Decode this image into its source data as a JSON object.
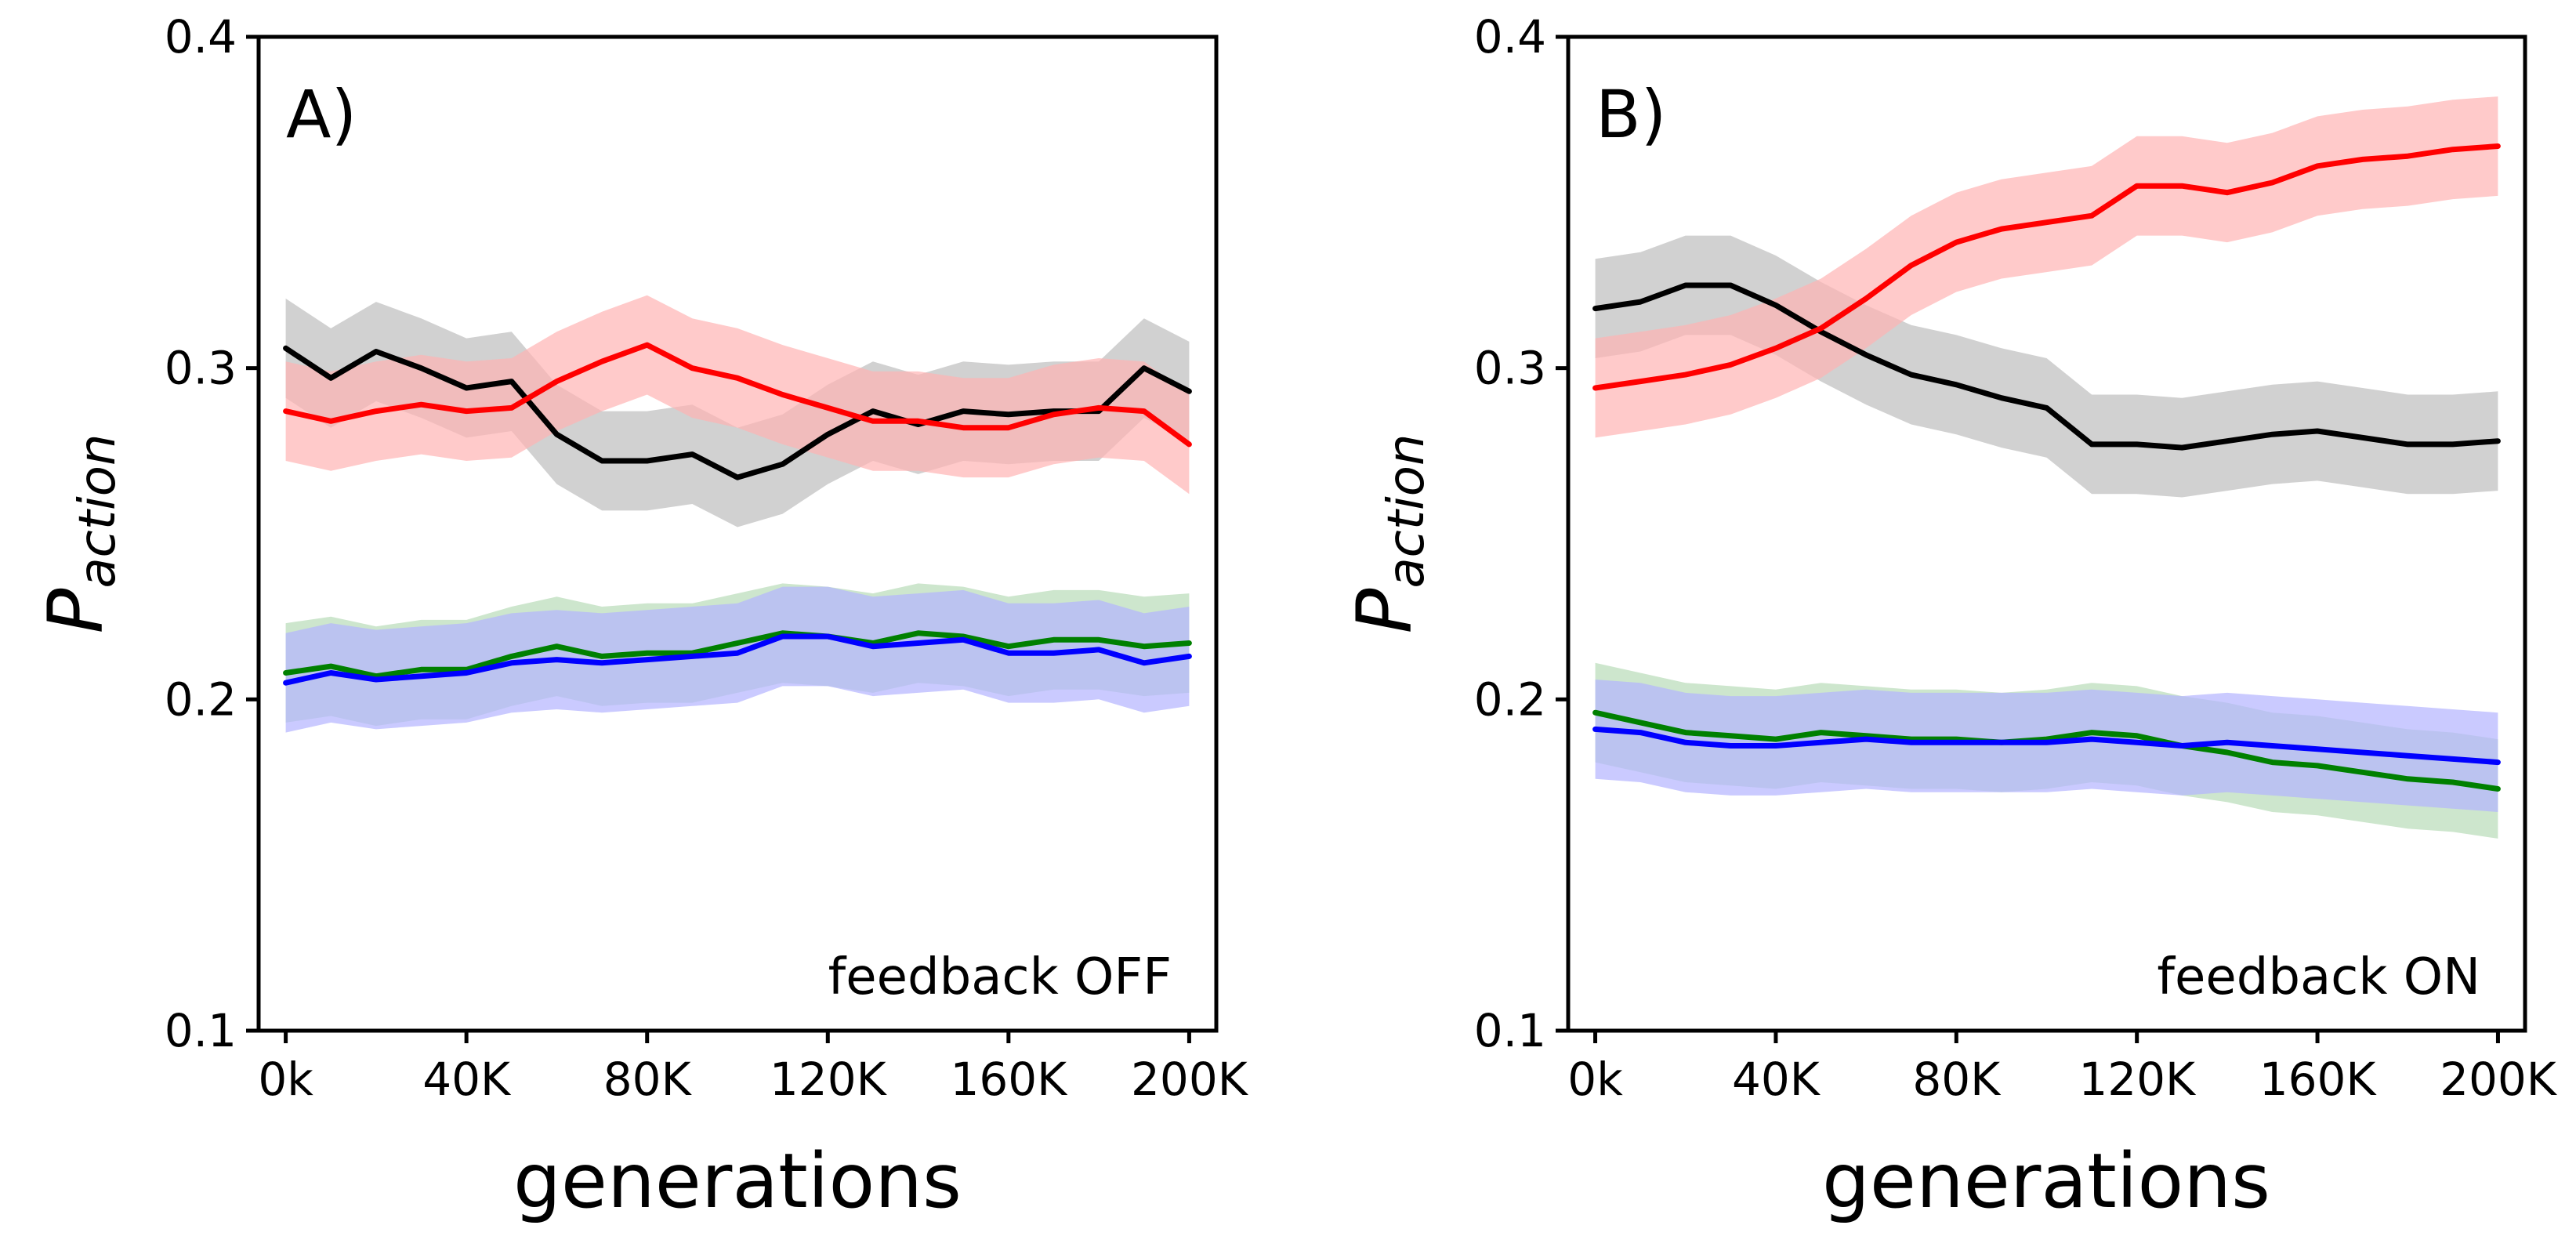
{
  "chart_data": [
    {
      "type": "line",
      "panel_label": "A)",
      "annotation": "feedback OFF",
      "xlabel": "generations",
      "ylabel_main": "P",
      "ylabel_sub": "action",
      "xlim": [
        -6000,
        206000
      ],
      "ylim": [
        0.1,
        0.4
      ],
      "xticks": [
        0,
        40000,
        80000,
        120000,
        160000,
        200000
      ],
      "xtick_labels": [
        "0k",
        "40K",
        "80K",
        "120K",
        "160K",
        "200K"
      ],
      "yticks": [
        0.1,
        0.2,
        0.3,
        0.4
      ],
      "ytick_labels": [
        "0.1",
        "0.2",
        "0.3",
        "0.4"
      ],
      "grid": false,
      "shaded_band": "approx. ±0.015 around each series",
      "x": [
        0,
        10000,
        20000,
        30000,
        40000,
        50000,
        60000,
        70000,
        80000,
        90000,
        100000,
        110000,
        120000,
        130000,
        140000,
        150000,
        160000,
        170000,
        180000,
        190000,
        200000
      ],
      "series": [
        {
          "color": "#000000",
          "band_color": "#bdbdbd",
          "values": [
            0.306,
            0.297,
            0.305,
            0.3,
            0.294,
            0.296,
            0.28,
            0.272,
            0.272,
            0.274,
            0.267,
            0.271,
            0.28,
            0.287,
            0.283,
            0.287,
            0.286,
            0.287,
            0.287,
            0.3,
            0.293
          ]
        },
        {
          "color": "#ff0000",
          "band_color": "#ffb3b3",
          "values": [
            0.287,
            0.284,
            0.287,
            0.289,
            0.287,
            0.288,
            0.296,
            0.302,
            0.307,
            0.3,
            0.297,
            0.292,
            0.288,
            0.284,
            0.284,
            0.282,
            0.282,
            0.286,
            0.288,
            0.287,
            0.277
          ]
        },
        {
          "color": "#008000",
          "band_color": "#b8dbb8",
          "values": [
            0.208,
            0.21,
            0.207,
            0.209,
            0.209,
            0.213,
            0.216,
            0.213,
            0.214,
            0.214,
            0.217,
            0.22,
            0.219,
            0.217,
            0.22,
            0.219,
            0.216,
            0.218,
            0.218,
            0.216,
            0.217
          ]
        },
        {
          "color": "#0000ff",
          "band_color": "#b3b3ff",
          "values": [
            0.205,
            0.208,
            0.206,
            0.207,
            0.208,
            0.211,
            0.212,
            0.211,
            0.212,
            0.213,
            0.214,
            0.219,
            0.219,
            0.216,
            0.217,
            0.218,
            0.214,
            0.214,
            0.215,
            0.211,
            0.213
          ]
        }
      ]
    },
    {
      "type": "line",
      "panel_label": "B)",
      "annotation": "feedback ON",
      "xlabel": "generations",
      "ylabel_main": "P",
      "ylabel_sub": "action",
      "xlim": [
        -6000,
        206000
      ],
      "ylim": [
        0.1,
        0.4
      ],
      "xticks": [
        0,
        40000,
        80000,
        120000,
        160000,
        200000
      ],
      "xtick_labels": [
        "0k",
        "40K",
        "80K",
        "120K",
        "160K",
        "200K"
      ],
      "yticks": [
        0.1,
        0.2,
        0.3,
        0.4
      ],
      "ytick_labels": [
        "0.1",
        "0.2",
        "0.3",
        "0.4"
      ],
      "grid": false,
      "shaded_band": "approx. ±0.015 around each series",
      "x": [
        0,
        10000,
        20000,
        30000,
        40000,
        50000,
        60000,
        70000,
        80000,
        90000,
        100000,
        110000,
        120000,
        130000,
        140000,
        150000,
        160000,
        170000,
        180000,
        190000,
        200000
      ],
      "series": [
        {
          "color": "#000000",
          "band_color": "#bdbdbd",
          "values": [
            0.318,
            0.32,
            0.325,
            0.325,
            0.319,
            0.311,
            0.304,
            0.298,
            0.295,
            0.291,
            0.288,
            0.277,
            0.277,
            0.276,
            0.278,
            0.28,
            0.281,
            0.279,
            0.277,
            0.277,
            0.278
          ]
        },
        {
          "color": "#ff0000",
          "band_color": "#ffb3b3",
          "values": [
            0.294,
            0.296,
            0.298,
            0.301,
            0.306,
            0.312,
            0.321,
            0.331,
            0.338,
            0.342,
            0.344,
            0.346,
            0.355,
            0.355,
            0.353,
            0.356,
            0.361,
            0.363,
            0.364,
            0.366,
            0.367
          ]
        },
        {
          "color": "#008000",
          "band_color": "#b8dbb8",
          "values": [
            0.196,
            0.193,
            0.19,
            0.189,
            0.188,
            0.19,
            0.189,
            0.188,
            0.188,
            0.187,
            0.188,
            0.19,
            0.189,
            0.186,
            0.184,
            0.181,
            0.18,
            0.178,
            0.176,
            0.175,
            0.173
          ]
        },
        {
          "color": "#0000ff",
          "band_color": "#b3b3ff",
          "values": [
            0.191,
            0.19,
            0.187,
            0.186,
            0.186,
            0.187,
            0.188,
            0.187,
            0.187,
            0.187,
            0.187,
            0.188,
            0.187,
            0.186,
            0.187,
            0.186,
            0.185,
            0.184,
            0.183,
            0.182,
            0.181
          ]
        }
      ]
    }
  ]
}
